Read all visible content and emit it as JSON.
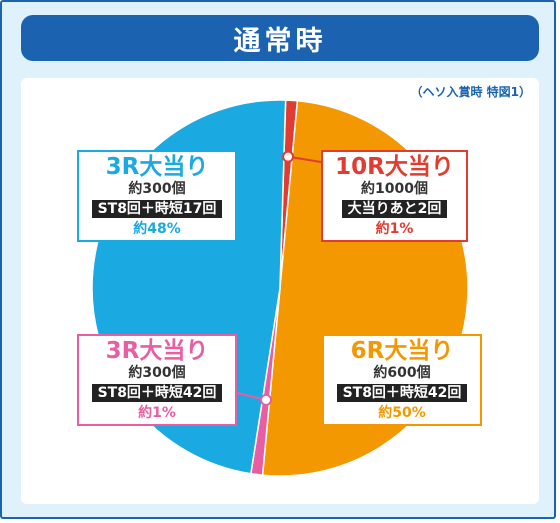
{
  "title": "通常時",
  "note": "（ヘソ入賞時 特図1）",
  "colors": {
    "blue": "#1b63b1",
    "cyan": "#1ba9e1",
    "orange": "#f39800",
    "red": "#e03c31",
    "pink": "#e95ea2"
  },
  "chart_data": {
    "type": "pie",
    "slices": [
      {
        "label": "10R大当り",
        "payout": "約1000個",
        "feature": "大当りあと2回",
        "share": "約1%",
        "value": 1,
        "color": "#e03c31"
      },
      {
        "label": "6R大当り",
        "payout": "約600個",
        "feature": "ST8回＋時短42回",
        "share": "約50%",
        "value": 50,
        "color": "#f39800"
      },
      {
        "label": "3R大当り",
        "payout": "約300個",
        "feature": "ST8回＋時短42回",
        "share": "約1%",
        "value": 1,
        "color": "#e95ea2"
      },
      {
        "label": "3R大当り",
        "payout": "約300個",
        "feature": "ST8回＋時短17回",
        "share": "約48%",
        "value": 48,
        "color": "#1ba9e1"
      }
    ]
  }
}
